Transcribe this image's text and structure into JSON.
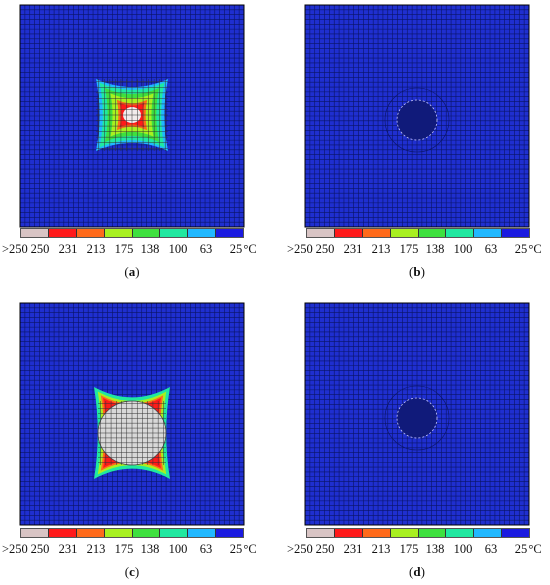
{
  "colors": {
    "background_field": "#1f2fd0",
    "mesh_line": "#0a1466"
  },
  "legend": {
    "colors": [
      "#d8c4c4",
      "#ff1a1a",
      "#ff6a1a",
      "#a8f020",
      "#3ee03e",
      "#20e8a0",
      "#20b8ff",
      "#1a1ae0"
    ],
    "labels": [
      ">250",
      "250",
      "231",
      "213",
      "175",
      "138",
      "100",
      "63",
      "25",
      "°C"
    ]
  },
  "panels": [
    {
      "id": "a",
      "caption_open": "(",
      "caption_letter": "a",
      "caption_close": ")",
      "pattern": "hot-small"
    },
    {
      "id": "b",
      "caption_open": "(",
      "caption_letter": "b",
      "caption_close": ")",
      "pattern": "cool-hole"
    },
    {
      "id": "c",
      "caption_open": "(",
      "caption_letter": "c",
      "caption_close": ")",
      "pattern": "hot-large"
    },
    {
      "id": "d",
      "caption_open": "(",
      "caption_letter": "d",
      "caption_close": ")",
      "pattern": "cool-hole"
    }
  ]
}
